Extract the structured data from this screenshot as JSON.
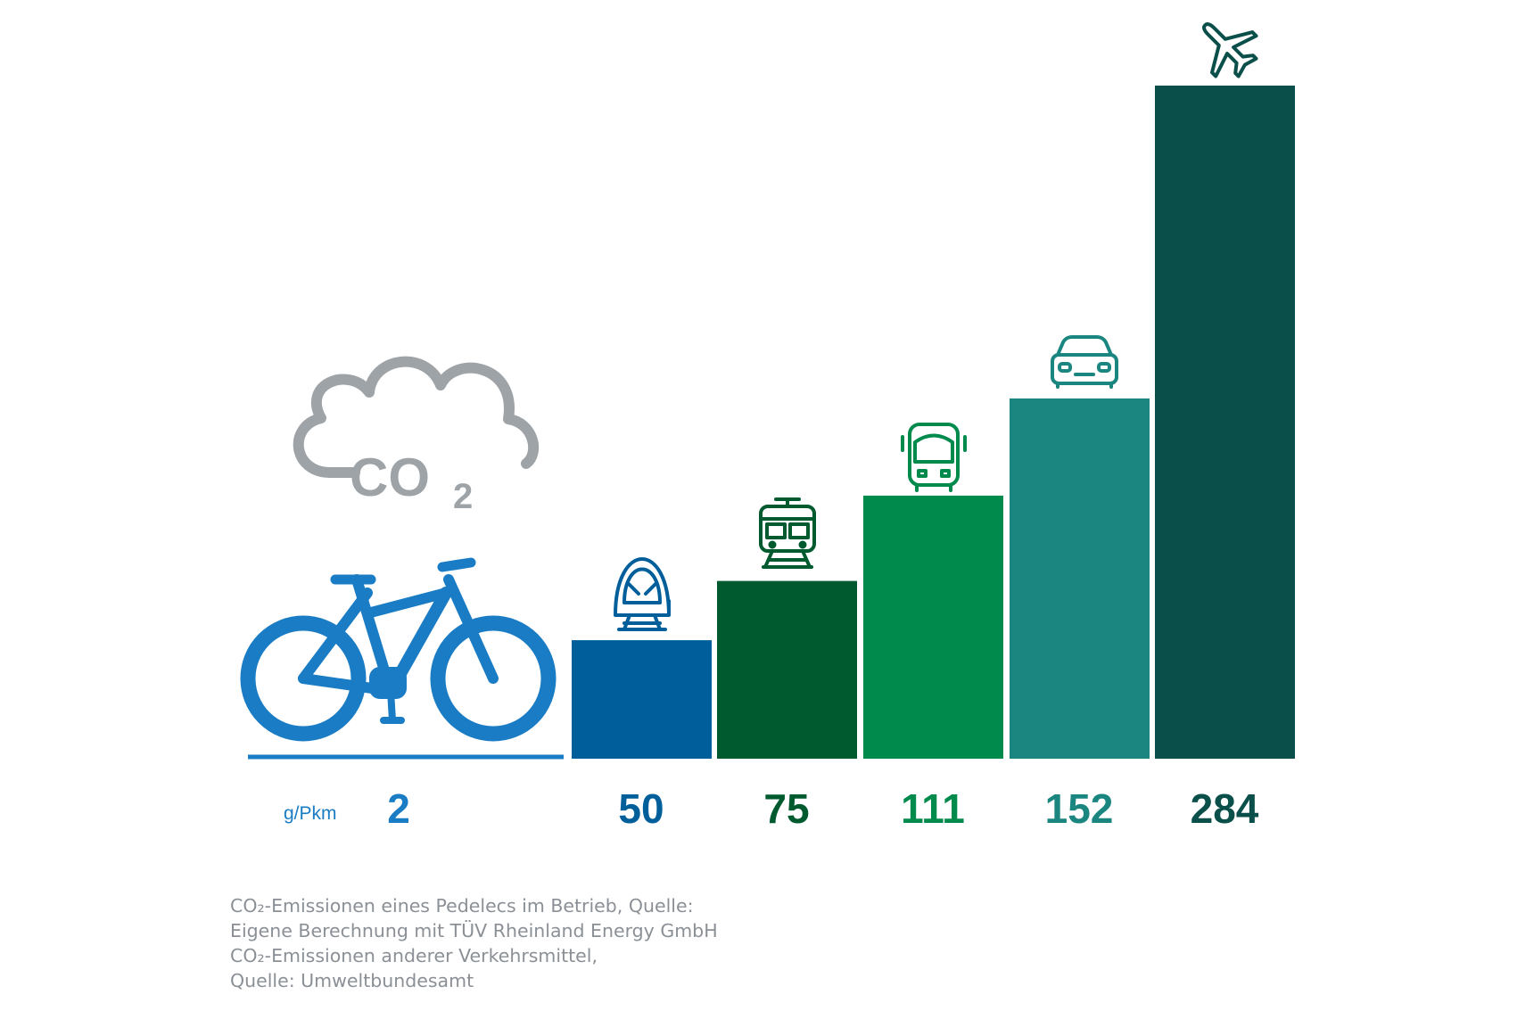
{
  "chart_data": {
    "type": "bar",
    "title": "",
    "unit": "g/Pkm",
    "categories": [
      "Pedelec",
      "Fernzug",
      "Nahverkehrszug",
      "Linienbus",
      "Pkw",
      "Flugzeug"
    ],
    "values": [
      2,
      50,
      75,
      111,
      152,
      284
    ],
    "value_labels": [
      "2",
      "50",
      "75",
      "111",
      "152",
      "284"
    ],
    "ylim": [
      0,
      284
    ],
    "grid": false,
    "legend": "none"
  },
  "colors": {
    "pedelec": "#1a7cc4",
    "fernzug": "#005f9b",
    "nahverkehrszug": "#005a2f",
    "linienbus": "#008a4c",
    "pkw": "#1b8680",
    "flugzeug": "#0a4f4a",
    "cloud": "#9ea3a8",
    "caption": "#8a9096"
  },
  "icons": [
    "co2-cloud-icon",
    "e-bike-icon",
    "high-speed-train-icon",
    "regional-train-icon",
    "bus-icon",
    "car-icon",
    "airplane-icon"
  ],
  "co2": {
    "main": "CO",
    "sub": "2"
  },
  "caption": {
    "line1": "CO₂-Emissionen eines Pedelecs im Betrieb, Quelle:",
    "line2": "Eigene Berechnung mit TÜV Rheinland Energy GmbH",
    "line3": "CO₂-Emissionen anderer Verkehrsmittel,",
    "line4": "Quelle: Umweltbundesamt"
  }
}
